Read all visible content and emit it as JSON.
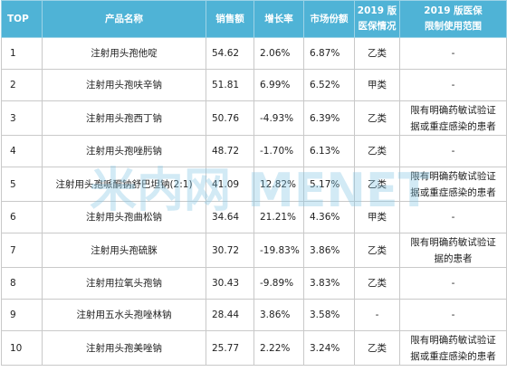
{
  "table": {
    "headers": {
      "rank": "TOP",
      "name": "产品名称",
      "sales": "销售额",
      "growth": "增长率",
      "share": "市场份额",
      "insurance_line1": "2019 版",
      "insurance_line2": "医保情况",
      "scope_line1": "2019 版医保",
      "scope_line2": "限制使用范围"
    },
    "rows": [
      {
        "rank": "1",
        "name": "注射用头孢他啶",
        "sales": "54.62",
        "growth": "2.06%",
        "share": "6.87%",
        "insurance": "乙类",
        "scope_line1": "-",
        "scope_line2": ""
      },
      {
        "rank": "2",
        "name": "注射用头孢呋辛钠",
        "sales": "51.81",
        "growth": "6.99%",
        "share": "6.52%",
        "insurance": "甲类",
        "scope_line1": "-",
        "scope_line2": ""
      },
      {
        "rank": "3",
        "name": "注射用头孢西丁钠",
        "sales": "50.76",
        "growth": "-4.93%",
        "share": "6.39%",
        "insurance": "乙类",
        "scope_line1": "限有明确药敏试验证",
        "scope_line2": "据或重症感染的患者"
      },
      {
        "rank": "4",
        "name": "注射用头孢唑肟钠",
        "sales": "48.72",
        "growth": "-1.70%",
        "share": "6.13%",
        "insurance": "乙类",
        "scope_line1": "-",
        "scope_line2": ""
      },
      {
        "rank": "5",
        "name": "注射用头孢哌酮钠舒巴坦钠(2:1)",
        "sales": "41.09",
        "growth": "12.82%",
        "share": "5.17%",
        "insurance": "乙类",
        "scope_line1": "限有明确药敏试验证",
        "scope_line2": "据或重症感染的患者"
      },
      {
        "rank": "6",
        "name": "注射用头孢曲松钠",
        "sales": "34.64",
        "growth": "21.21%",
        "share": "4.36%",
        "insurance": "甲类",
        "scope_line1": "-",
        "scope_line2": ""
      },
      {
        "rank": "7",
        "name": "注射用头孢硫脒",
        "sales": "30.72",
        "growth": "-19.83%",
        "share": "3.86%",
        "insurance": "乙类",
        "scope_line1": "限有明确药敏试验证",
        "scope_line2": "据的患者"
      },
      {
        "rank": "8",
        "name": "注射用拉氧头孢钠",
        "sales": "30.43",
        "growth": "-9.89%",
        "share": "3.83%",
        "insurance": "乙类",
        "scope_line1": "-",
        "scope_line2": ""
      },
      {
        "rank": "9",
        "name": "注射用五水头孢唑林钠",
        "sales": "28.44",
        "growth": "3.86%",
        "share": "3.58%",
        "insurance": "-",
        "scope_line1": "-",
        "scope_line2": ""
      },
      {
        "rank": "10",
        "name": "注射用头孢美唑钠",
        "sales": "25.77",
        "growth": "2.22%",
        "share": "3.24%",
        "insurance": "乙类",
        "scope_line1": "限有明确药敏试验证",
        "scope_line2": "据或重症感染的患者"
      }
    ]
  },
  "watermark": {
    "text": "米内网 MENET",
    "color": "#7ec3e3"
  },
  "colors": {
    "header_bg": "#4fb3d6",
    "header_text": "#ffffff",
    "grid": "#c9c9c9"
  }
}
